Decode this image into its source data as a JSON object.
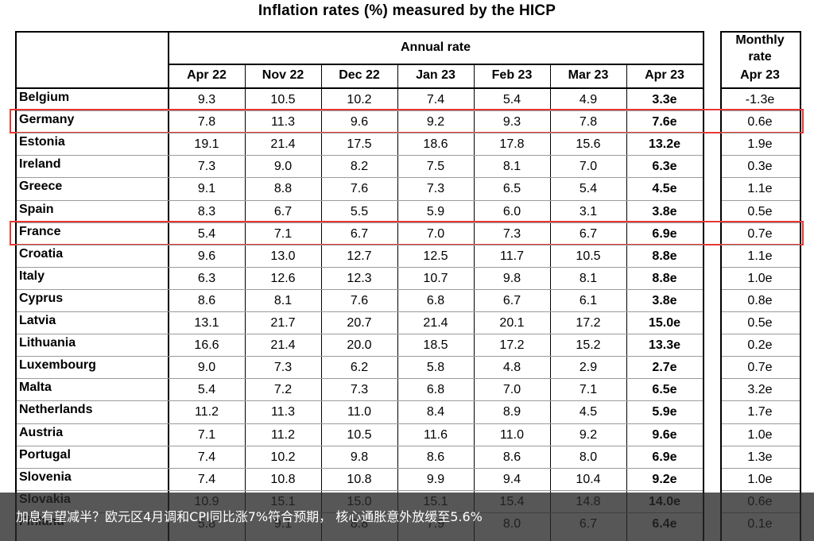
{
  "title": "Inflation rates (%) measured by the HICP",
  "header": {
    "annual_rate": "Annual rate",
    "monthly_rate_line1": "Monthly",
    "monthly_rate_line2": "rate",
    "columns": [
      "Apr 22",
      "Nov 22",
      "Dec 22",
      "Jan 23",
      "Feb 23",
      "Mar 23",
      "Apr 23"
    ],
    "monthly_column": "Apr 23"
  },
  "rows": [
    {
      "country": "Belgium",
      "values": [
        "9.3",
        "10.5",
        "10.2",
        "7.4",
        "5.4",
        "4.9",
        "3.3e"
      ],
      "monthly": "-1.3e",
      "highlight": false
    },
    {
      "country": "Germany",
      "values": [
        "7.8",
        "11.3",
        "9.6",
        "9.2",
        "9.3",
        "7.8",
        "7.6e"
      ],
      "monthly": "0.6e",
      "highlight": true
    },
    {
      "country": "Estonia",
      "values": [
        "19.1",
        "21.4",
        "17.5",
        "18.6",
        "17.8",
        "15.6",
        "13.2e"
      ],
      "monthly": "1.9e",
      "highlight": false
    },
    {
      "country": "Ireland",
      "values": [
        "7.3",
        "9.0",
        "8.2",
        "7.5",
        "8.1",
        "7.0",
        "6.3e"
      ],
      "monthly": "0.3e",
      "highlight": false
    },
    {
      "country": "Greece",
      "values": [
        "9.1",
        "8.8",
        "7.6",
        "7.3",
        "6.5",
        "5.4",
        "4.5e"
      ],
      "monthly": "1.1e",
      "highlight": false
    },
    {
      "country": "Spain",
      "values": [
        "8.3",
        "6.7",
        "5.5",
        "5.9",
        "6.0",
        "3.1",
        "3.8e"
      ],
      "monthly": "0.5e",
      "highlight": false
    },
    {
      "country": "France",
      "values": [
        "5.4",
        "7.1",
        "6.7",
        "7.0",
        "7.3",
        "6.7",
        "6.9e"
      ],
      "monthly": "0.7e",
      "highlight": true
    },
    {
      "country": "Croatia",
      "values": [
        "9.6",
        "13.0",
        "12.7",
        "12.5",
        "11.7",
        "10.5",
        "8.8e"
      ],
      "monthly": "1.1e",
      "highlight": false
    },
    {
      "country": "Italy",
      "values": [
        "6.3",
        "12.6",
        "12.3",
        "10.7",
        "9.8",
        "8.1",
        "8.8e"
      ],
      "monthly": "1.0e",
      "highlight": false
    },
    {
      "country": "Cyprus",
      "values": [
        "8.6",
        "8.1",
        "7.6",
        "6.8",
        "6.7",
        "6.1",
        "3.8e"
      ],
      "monthly": "0.8e",
      "highlight": false
    },
    {
      "country": "Latvia",
      "values": [
        "13.1",
        "21.7",
        "20.7",
        "21.4",
        "20.1",
        "17.2",
        "15.0e"
      ],
      "monthly": "0.5e",
      "highlight": false
    },
    {
      "country": "Lithuania",
      "values": [
        "16.6",
        "21.4",
        "20.0",
        "18.5",
        "17.2",
        "15.2",
        "13.3e"
      ],
      "monthly": "0.2e",
      "highlight": false
    },
    {
      "country": "Luxembourg",
      "values": [
        "9.0",
        "7.3",
        "6.2",
        "5.8",
        "4.8",
        "2.9",
        "2.7e"
      ],
      "monthly": "0.7e",
      "highlight": false
    },
    {
      "country": "Malta",
      "values": [
        "5.4",
        "7.2",
        "7.3",
        "6.8",
        "7.0",
        "7.1",
        "6.5e"
      ],
      "monthly": "3.2e",
      "highlight": false
    },
    {
      "country": "Netherlands",
      "values": [
        "11.2",
        "11.3",
        "11.0",
        "8.4",
        "8.9",
        "4.5",
        "5.9e"
      ],
      "monthly": "1.7e",
      "highlight": false
    },
    {
      "country": "Austria",
      "values": [
        "7.1",
        "11.2",
        "10.5",
        "11.6",
        "11.0",
        "9.2",
        "9.6e"
      ],
      "monthly": "1.0e",
      "highlight": false
    },
    {
      "country": "Portugal",
      "values": [
        "7.4",
        "10.2",
        "9.8",
        "8.6",
        "8.6",
        "8.0",
        "6.9e"
      ],
      "monthly": "1.3e",
      "highlight": false
    },
    {
      "country": "Slovenia",
      "values": [
        "7.4",
        "10.8",
        "10.8",
        "9.9",
        "9.4",
        "10.4",
        "9.2e"
      ],
      "monthly": "1.0e",
      "highlight": false
    },
    {
      "country": "Slovakia",
      "values": [
        "10.9",
        "15.1",
        "15.0",
        "15.1",
        "15.4",
        "14.8",
        "14.0e"
      ],
      "monthly": "0.6e",
      "highlight": false
    },
    {
      "country": "Finland",
      "values": [
        "5.8",
        "9.1",
        "8.8",
        "7.9",
        "8.0",
        "6.7",
        "6.4e"
      ],
      "monthly": "0.1e",
      "highlight": false
    }
  ],
  "caption": "加息有望减半？欧元区4月调和CPI同比涨7%符合预期， 核心通胀意外放缓至5.6%",
  "colors": {
    "highlight_border": "#e53935",
    "caption_background": "#282828",
    "caption_text": "#ffffff"
  }
}
